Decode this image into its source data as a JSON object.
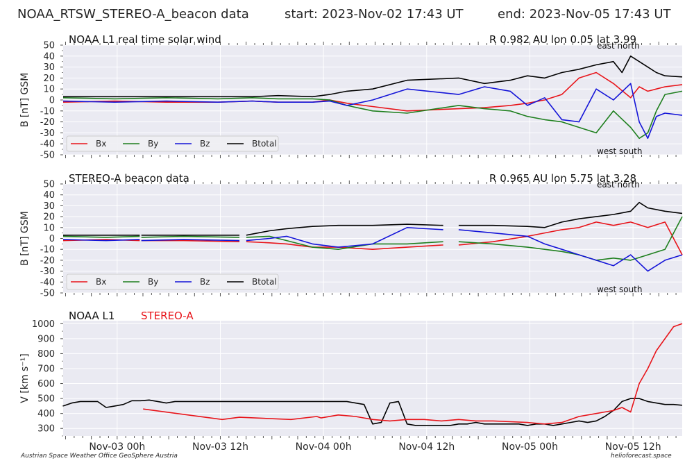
{
  "header": {
    "title": "NOAA_RTSW_STEREO-A_beacon data",
    "start": "start: 2023-Nov-02 17:43 UT",
    "end": "end: 2023-Nov-05 17:43 UT"
  },
  "footer": {
    "left": "Austrian Space Weather Office   GeoSphere Austria",
    "right": "helioforecast.space"
  },
  "colors": {
    "bx": "#e8141a",
    "by": "#1e7f1e",
    "bz": "#1414d8",
    "bt": "#000000",
    "panel_bg": "#eaeaf2",
    "grid": "#ffffff"
  },
  "chart_data": [
    {
      "type": "line",
      "title": "NOAA L1 real time solar wind",
      "position_text": "R 0.982 AU   lon 0.05  lat 3.99",
      "corner_labels": {
        "top": "east   north",
        "bottom": "west   south"
      },
      "ylabel": "B [nT] GSM",
      "ylim": [
        -50,
        50
      ],
      "yticks": [
        -50,
        -40,
        -30,
        -20,
        -10,
        0,
        10,
        20,
        30,
        40,
        50
      ],
      "x_unit": "hours since start",
      "xlim": [
        0,
        72
      ],
      "legend": {
        "placement": "lower-left",
        "labels": [
          "Bx",
          "By",
          "Bz",
          "Btotal"
        ]
      },
      "series": [
        {
          "name": "Bx",
          "color": "#e8141a",
          "x": [
            0,
            6,
            12,
            18,
            22,
            25,
            29,
            31,
            33,
            36,
            40,
            46,
            49,
            52,
            54,
            56,
            58,
            60,
            62,
            64,
            66,
            67,
            68,
            69,
            70,
            72
          ],
          "y": [
            -2,
            -1,
            -2,
            -2,
            -1,
            -2,
            -2,
            0,
            -3,
            -6,
            -10,
            -8,
            -7,
            -5,
            -3,
            0,
            5,
            20,
            25,
            15,
            2,
            12,
            8,
            10,
            12,
            14
          ]
        },
        {
          "name": "By",
          "color": "#1e7f1e",
          "x": [
            0,
            6,
            12,
            18,
            22,
            25,
            29,
            31,
            33,
            36,
            40,
            46,
            49,
            52,
            54,
            56,
            58,
            60,
            62,
            64,
            66,
            67,
            68,
            69,
            70,
            72
          ],
          "y": [
            2,
            1,
            2,
            1,
            2,
            1,
            1,
            0,
            -5,
            -10,
            -12,
            -5,
            -8,
            -10,
            -15,
            -18,
            -20,
            -25,
            -30,
            -10,
            -25,
            -35,
            -30,
            -10,
            5,
            8
          ]
        },
        {
          "name": "Bz",
          "color": "#1414d8",
          "x": [
            0,
            6,
            12,
            18,
            22,
            25,
            29,
            31,
            33,
            36,
            40,
            46,
            49,
            52,
            54,
            56,
            58,
            60,
            62,
            64,
            66,
            67,
            68,
            69,
            70,
            72
          ],
          "y": [
            -1,
            -2,
            -1,
            -2,
            -1,
            -2,
            -2,
            -1,
            -5,
            0,
            10,
            5,
            12,
            8,
            -5,
            2,
            -18,
            -20,
            10,
            0,
            15,
            -20,
            -35,
            -15,
            -12,
            -14
          ]
        },
        {
          "name": "Btotal",
          "color": "#000000",
          "x": [
            0,
            6,
            12,
            18,
            22,
            25,
            29,
            31,
            33,
            36,
            40,
            46,
            49,
            52,
            54,
            56,
            58,
            60,
            62,
            64,
            65,
            66,
            67,
            68,
            69,
            70,
            72
          ],
          "y": [
            3,
            3,
            3,
            3,
            3,
            4,
            3,
            5,
            8,
            10,
            18,
            20,
            15,
            18,
            22,
            20,
            25,
            28,
            32,
            35,
            25,
            40,
            35,
            30,
            25,
            22,
            21
          ]
        }
      ]
    },
    {
      "type": "line",
      "title": "STEREO-A beacon data",
      "position_text": "R 0.965 AU   lon 5.75  lat 3.28",
      "corner_labels": {
        "top": "east   north",
        "bottom": "west   south"
      },
      "ylabel": "B [nT] GSM",
      "ylim": [
        -50,
        50
      ],
      "yticks": [
        -50,
        -40,
        -30,
        -20,
        -10,
        0,
        10,
        20,
        30,
        40,
        50
      ],
      "x_unit": "hours since start",
      "xlim": [
        0,
        72
      ],
      "data_gaps_hours": [
        [
          8.9,
          9.1
        ],
        [
          20.5,
          21.3
        ],
        [
          44.2,
          46.0
        ]
      ],
      "legend": {
        "placement": "lower-left",
        "labels": [
          "Bx",
          "By",
          "Bz",
          "Btotal"
        ]
      },
      "series": [
        {
          "name": "Bx",
          "color": "#e8141a",
          "x": [
            0,
            5,
            8.9,
            9.1,
            14,
            20.5,
            21.3,
            24,
            26,
            29,
            32,
            36,
            40,
            44.2,
            46.0,
            50,
            54,
            56,
            58,
            60,
            62,
            64,
            66,
            68,
            70,
            72
          ],
          "y": [
            -2,
            -1,
            -2,
            -2,
            -2,
            -3,
            -3,
            -4,
            -5,
            -8,
            -8,
            -10,
            -8,
            -6,
            -6,
            -3,
            2,
            5,
            8,
            10,
            15,
            12,
            15,
            10,
            15,
            -15
          ]
        },
        {
          "name": "By",
          "color": "#1e7f1e",
          "x": [
            0,
            5,
            8.9,
            9.1,
            14,
            20.5,
            21.3,
            24,
            26,
            29,
            32,
            36,
            40,
            44.2,
            46.0,
            50,
            54,
            56,
            58,
            60,
            62,
            64,
            66,
            68,
            70,
            72
          ],
          "y": [
            2,
            1,
            2,
            1,
            2,
            1,
            1,
            2,
            -2,
            -8,
            -10,
            -5,
            -5,
            -3,
            -3,
            -5,
            -8,
            -10,
            -12,
            -15,
            -20,
            -18,
            -20,
            -15,
            -10,
            20
          ]
        },
        {
          "name": "Bz",
          "color": "#1414d8",
          "x": [
            0,
            5,
            8.9,
            9.1,
            14,
            20.5,
            21.3,
            24,
            26,
            29,
            32,
            36,
            40,
            44.2,
            46.0,
            50,
            54,
            56,
            58,
            60,
            62,
            64,
            66,
            68,
            70,
            72
          ],
          "y": [
            -1,
            -2,
            -1,
            -2,
            -1,
            -2,
            -2,
            0,
            2,
            -5,
            -8,
            -5,
            10,
            8,
            8,
            5,
            2,
            -5,
            -10,
            -15,
            -20,
            -25,
            -15,
            -30,
            -20,
            -15
          ]
        },
        {
          "name": "Btotal",
          "color": "#000000",
          "x": [
            0,
            5,
            8.9,
            9.1,
            14,
            20.5,
            21.3,
            24,
            26,
            29,
            32,
            36,
            40,
            44.2,
            46.0,
            50,
            54,
            56,
            58,
            60,
            62,
            64,
            66,
            67,
            68,
            70,
            72
          ],
          "y": [
            3,
            3,
            3,
            3,
            3,
            3,
            3,
            7,
            9,
            11,
            12,
            12,
            13,
            12,
            12,
            12,
            11,
            10,
            15,
            18,
            20,
            22,
            25,
            33,
            28,
            25,
            23
          ]
        }
      ]
    },
    {
      "type": "line",
      "title": "",
      "legend_text": {
        "noaa": "NOAA L1",
        "stereo": "STEREO-A"
      },
      "ylabel": "V [km s⁻¹]",
      "ylim": [
        250,
        1020
      ],
      "yticks": [
        300,
        400,
        500,
        600,
        700,
        800,
        900,
        1000
      ],
      "x_unit": "hours since start",
      "xlim": [
        0,
        72
      ],
      "xtick_labels": [
        {
          "x": 6.28,
          "label": "Nov-03 00h"
        },
        {
          "x": 18.28,
          "label": "Nov-03 12h"
        },
        {
          "x": 30.28,
          "label": "Nov-04 00h"
        },
        {
          "x": 42.28,
          "label": "Nov-04 12h"
        },
        {
          "x": 54.28,
          "label": "Nov-05 00h"
        },
        {
          "x": 66.28,
          "label": "Nov-05 12h"
        }
      ],
      "series": [
        {
          "name": "NOAA L1",
          "color": "#000000",
          "x": [
            0,
            1,
            2,
            3,
            4,
            5,
            6,
            7,
            8,
            9,
            10,
            11,
            12,
            13,
            14,
            15,
            16,
            17,
            18,
            19,
            20,
            21,
            22,
            23,
            24,
            25,
            26,
            27,
            28,
            29,
            30,
            31,
            32,
            33,
            34,
            35,
            36,
            37,
            38,
            39,
            40,
            41,
            42,
            43,
            44,
            45,
            46,
            47,
            48,
            49,
            50,
            51,
            52,
            53,
            54,
            55,
            56,
            57,
            58,
            59,
            60,
            61,
            62,
            63,
            64,
            65,
            66,
            67,
            68,
            69,
            70,
            71,
            72
          ],
          "y": [
            450,
            470,
            480,
            480,
            480,
            440,
            450,
            460,
            485,
            485,
            490,
            480,
            470,
            480,
            480,
            480,
            480,
            480,
            480,
            480,
            480,
            480,
            480,
            480,
            480,
            480,
            480,
            480,
            480,
            480,
            480,
            480,
            480,
            480,
            470,
            460,
            330,
            340,
            470,
            480,
            330,
            320,
            320,
            320,
            320,
            320,
            330,
            330,
            340,
            330,
            330,
            330,
            330,
            330,
            320,
            330,
            330,
            320,
            330,
            340,
            350,
            340,
            350,
            380,
            420,
            480,
            500,
            500,
            480,
            470,
            460,
            460,
            455
          ]
        },
        {
          "name": "STEREO-A",
          "color": "#e8141a",
          "x": [
            9.3,
            18.5,
            20.5,
            26.5,
            29.5,
            30,
            32,
            34,
            36,
            38,
            40,
            42,
            44,
            46,
            48,
            50,
            52,
            54,
            56,
            58,
            60,
            62,
            63,
            64,
            65,
            66,
            67,
            68,
            69,
            70,
            71,
            72
          ],
          "y": [
            430,
            360,
            375,
            360,
            380,
            370,
            390,
            380,
            360,
            350,
            360,
            360,
            350,
            360,
            350,
            350,
            345,
            340,
            330,
            340,
            380,
            400,
            410,
            420,
            440,
            410,
            600,
            700,
            820,
            900,
            980,
            1000
          ]
        }
      ]
    }
  ]
}
